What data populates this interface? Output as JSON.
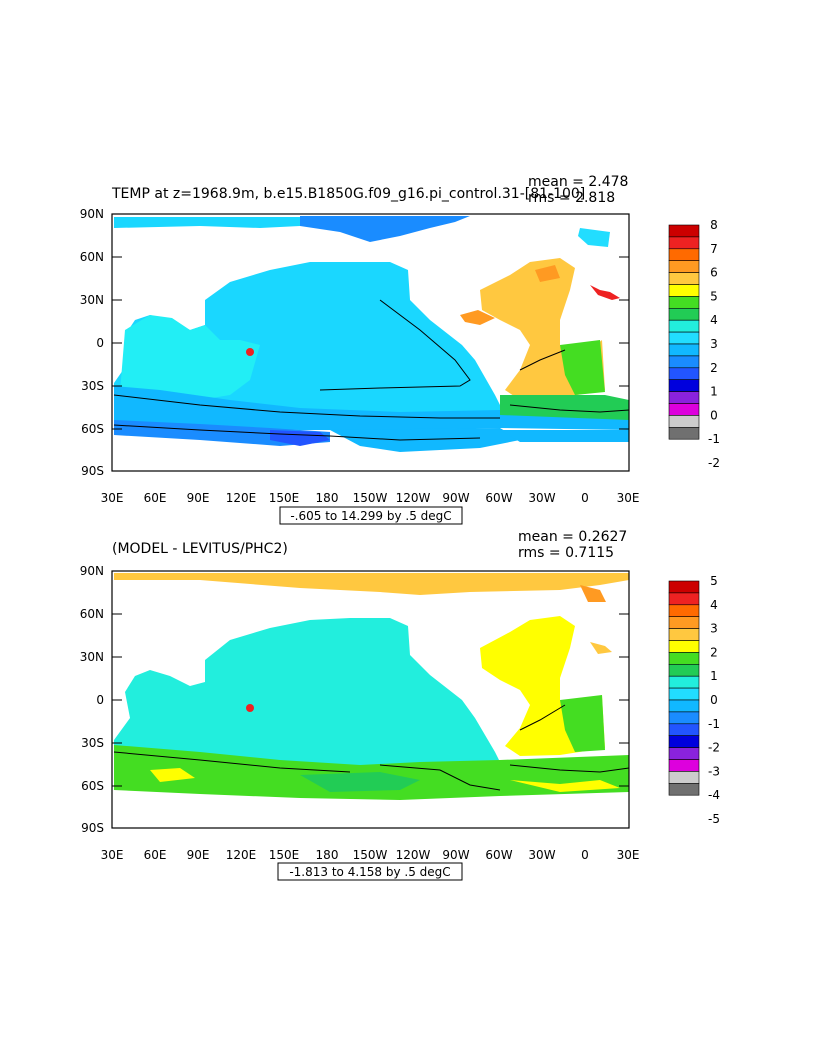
{
  "panels": [
    {
      "title": "TEMP at z=1968.9m, b.e15.B1850G.f09_g16.pi_control.31-[81-100]",
      "mean": "mean = 2.478",
      "rms": "rms = 2.818",
      "range_label": "-.605 to 14.299 by .5 degC",
      "colorbar_labels": [
        "8",
        "7",
        "6",
        "5",
        "4",
        "3",
        "2",
        "1",
        "0",
        "-1",
        "-2"
      ],
      "colors": [
        "#cc0000",
        "#ee2222",
        "#ff6a00",
        "#ff9a22",
        "#ffc840",
        "#ffff00",
        "#44dd22",
        "#22cc55",
        "#22eedd",
        "#22ddff",
        "#11b8ff",
        "#1a8cff",
        "#2255ff",
        "#0000dd",
        "#8a22dd",
        "#dd00dd",
        "#cccccc",
        "#707070"
      ],
      "ocean_color": "#1ae0ff"
    },
    {
      "title": "(MODEL - LEVITUS/PHC2)",
      "mean": "mean = 0.2627",
      "rms": "rms = 0.7115",
      "range_label": "-1.813 to 4.158 by .5 degC",
      "colorbar_labels": [
        "5",
        "4",
        "3",
        "2",
        "1",
        "0",
        "-1",
        "-2",
        "-3",
        "-4",
        "-5"
      ],
      "colors": [
        "#cc0000",
        "#ee2222",
        "#ff6a00",
        "#ff9a22",
        "#ffc840",
        "#ffff00",
        "#44dd22",
        "#22cc55",
        "#22eedd",
        "#22ddff",
        "#11b8ff",
        "#1a8cff",
        "#2255ff",
        "#0000dd",
        "#8a22dd",
        "#dd00dd",
        "#cccccc",
        "#707070"
      ],
      "ocean_color": "#22eedd"
    }
  ],
  "axes": {
    "lat_labels": [
      "90N",
      "60N",
      "30N",
      "0",
      "30S",
      "60S",
      "90S"
    ],
    "lon_labels": [
      "30E",
      "60E",
      "90E",
      "120E",
      "150E",
      "180",
      "150W",
      "120W",
      "90W",
      "60W",
      "30W",
      "0",
      "30E"
    ]
  }
}
